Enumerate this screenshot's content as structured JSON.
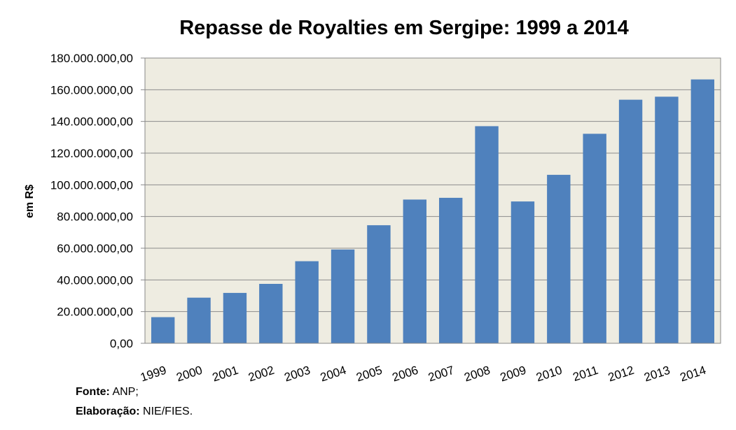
{
  "chart_data": {
    "type": "bar",
    "title": "Repasse de Royalties em Sergipe: 1999 a 2014",
    "xlabel": "",
    "ylabel": "em R$",
    "categories": [
      "1999",
      "2000",
      "2001",
      "2002",
      "2003",
      "2004",
      "2005",
      "2006",
      "2007",
      "2008",
      "2009",
      "2010",
      "2011",
      "2012",
      "2013",
      "2014"
    ],
    "values": [
      16500000,
      28800000,
      31800000,
      37500000,
      51800000,
      59200000,
      74500000,
      90700000,
      91800000,
      137000000,
      89500000,
      106300000,
      132200000,
      153700000,
      155600000,
      166500000
    ],
    "ylim": [
      0,
      180000000
    ],
    "yticks": [
      "0,00",
      "20.000.000,00",
      "40.000.000,00",
      "60.000.000,00",
      "80.000.000,00",
      "100.000.000,00",
      "120.000.000,00",
      "140.000.000,00",
      "160.000.000,00",
      "180.000.000,00"
    ],
    "grid": true,
    "colors": {
      "bar": "#4f81bd",
      "plot_background": "#eeece1",
      "gridline": "#8c8c8c"
    }
  },
  "footer": {
    "source_label": "Fonte:",
    "source_value": "ANP;",
    "credit_label": "Elaboração:",
    "credit_value": "NIE/FIES."
  }
}
